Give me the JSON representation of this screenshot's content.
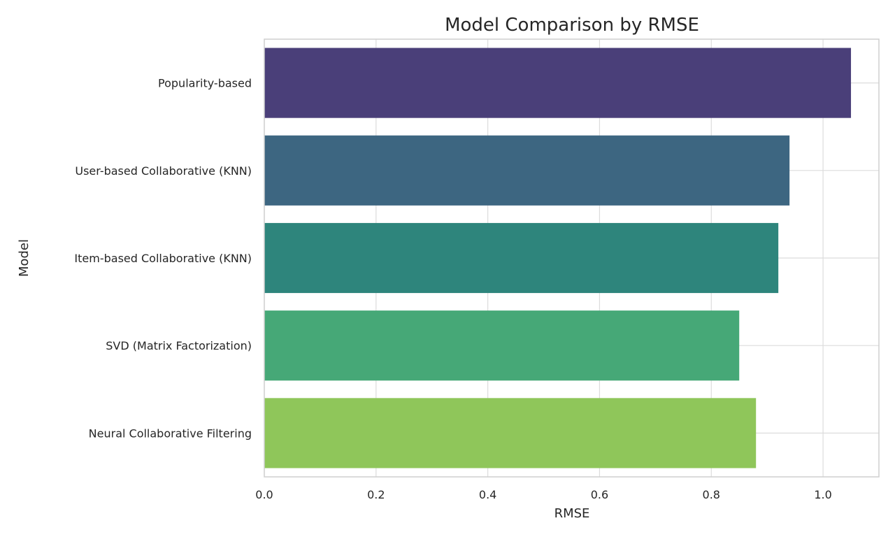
{
  "chart_data": {
    "type": "bar",
    "orientation": "horizontal",
    "title": "Model Comparison by RMSE",
    "xlabel": "RMSE",
    "ylabel": "Model",
    "xlim": [
      0.0,
      1.1
    ],
    "xticks": [
      0.0,
      0.2,
      0.4,
      0.6,
      0.8,
      1.0
    ],
    "xtick_labels": [
      "0.0",
      "0.2",
      "0.4",
      "0.6",
      "0.8",
      "1.0"
    ],
    "grid": true,
    "categories": [
      "Popularity-based",
      "User-based Collaborative (KNN)",
      "Item-based Collaborative (KNN)",
      "SVD (Matrix Factorization)",
      "Neural Collaborative Filtering"
    ],
    "values": [
      1.05,
      0.94,
      0.92,
      0.85,
      0.88
    ],
    "colors": [
      "#4a3f79",
      "#3d6681",
      "#2e857c",
      "#46a877",
      "#8fc65a"
    ]
  }
}
